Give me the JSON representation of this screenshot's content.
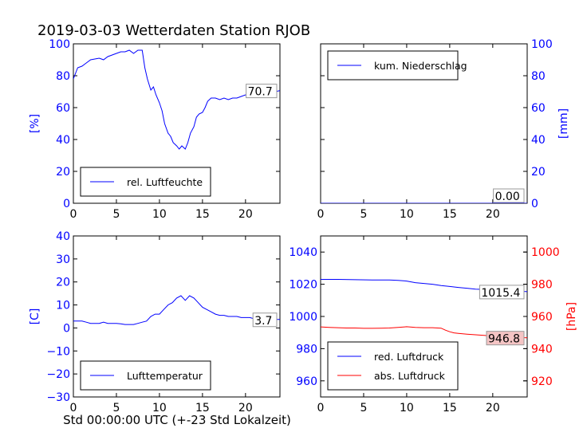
{
  "title": "2019-03-03 Wetterdaten Station RJOB",
  "footer_label": "Std 00:00:00 UTC (+-23 Std Lokalzeit)",
  "colors": {
    "blue": "#0000ff",
    "red": "#ff0000",
    "black": "#000000"
  },
  "chart_data": [
    {
      "type": "line",
      "ylabel": "[%]",
      "xlim": [
        0,
        24
      ],
      "ylim": [
        0,
        100
      ],
      "xticks": [
        "0",
        "5",
        "10",
        "15",
        "20"
      ],
      "yticks": [
        "0",
        "20",
        "40",
        "60",
        "80",
        "100"
      ],
      "legend": {
        "label": "rel. Luftfeuchte",
        "position": "lower-left"
      },
      "last_value_label": "70.7",
      "series": [
        {
          "name": "rel. Luftfeuchte",
          "color": "#0000ff",
          "x": [
            0,
            0.5,
            1,
            1.5,
            2,
            3,
            3.5,
            4,
            4.5,
            5,
            5.5,
            6,
            6.5,
            7,
            7.5,
            8,
            8.3,
            8.6,
            9,
            9.3,
            9.6,
            10,
            10.3,
            10.6,
            11,
            11.3,
            11.6,
            12,
            12.3,
            12.6,
            13,
            13.3,
            13.6,
            14,
            14.3,
            14.6,
            15,
            15.3,
            15.6,
            16,
            16.5,
            17,
            17.5,
            18,
            18.5,
            19,
            19.5,
            20,
            20.5,
            21,
            21.5,
            22,
            22.5,
            23,
            23.5,
            24
          ],
          "y": [
            78,
            85,
            86,
            88,
            90,
            91,
            90,
            92,
            93,
            94,
            95,
            95,
            96,
            94,
            96,
            96,
            85,
            78,
            71,
            73,
            68,
            63,
            58,
            50,
            44,
            42,
            38,
            36,
            34,
            36,
            34,
            38,
            44,
            48,
            54,
            56,
            57,
            60,
            64,
            66,
            66,
            65,
            66,
            65,
            66,
            66,
            67,
            68,
            67,
            69,
            70,
            71,
            70,
            71,
            70,
            70.7
          ]
        }
      ]
    },
    {
      "type": "line",
      "ylabel": "[mm]",
      "xlim": [
        0,
        24
      ],
      "ylim": [
        0,
        100
      ],
      "xticks": [
        "0",
        "5",
        "10",
        "15",
        "20"
      ],
      "yticks": [
        "0",
        "20",
        "40",
        "60",
        "80",
        "100"
      ],
      "legend": {
        "label": "kum. Niederschlag",
        "position": "upper-left"
      },
      "last_value_label": "0.00",
      "series": [
        {
          "name": "kum. Niederschlag",
          "color": "#0000ff",
          "x": [
            0,
            24
          ],
          "y": [
            0,
            0
          ]
        }
      ]
    },
    {
      "type": "line",
      "ylabel": "[C]",
      "xlabel": "Std 00:00:00 UTC (+-23 Std Lokalzeit)",
      "xlim": [
        0,
        24
      ],
      "ylim": [
        -30,
        40
      ],
      "xticks": [
        "0",
        "5",
        "10",
        "15",
        "20"
      ],
      "yticks": [
        "−30",
        "−20",
        "−10",
        "0",
        "10",
        "20",
        "30",
        "40"
      ],
      "legend": {
        "label": "Lufttemperatur",
        "position": "lower-left"
      },
      "last_value_label": "3.7",
      "series": [
        {
          "name": "Lufttemperatur",
          "color": "#0000ff",
          "x": [
            0,
            0.5,
            1,
            1.5,
            2,
            2.5,
            3,
            3.5,
            4,
            4.5,
            5,
            5.5,
            6,
            6.5,
            7,
            7.5,
            8,
            8.5,
            9,
            9.5,
            10,
            10.5,
            11,
            11.5,
            12,
            12.5,
            13,
            13.5,
            14,
            14.5,
            15,
            15.5,
            16,
            16.5,
            17,
            17.5,
            18,
            18.5,
            19,
            19.5,
            20,
            20.5,
            21,
            21.5,
            22,
            22.5,
            23,
            23.5,
            24
          ],
          "y": [
            3,
            3,
            3,
            2.5,
            2,
            2,
            2,
            2.5,
            2,
            2,
            2,
            1.8,
            1.5,
            1.5,
            1.5,
            2,
            2.5,
            3,
            5,
            6,
            6,
            8,
            10,
            11,
            13,
            14,
            12,
            14,
            13,
            11,
            9,
            8,
            7,
            6,
            5.5,
            5.5,
            5,
            5,
            5,
            4.5,
            4.5,
            4.5,
            4,
            4,
            4,
            3.5,
            3.5,
            3.7,
            3.7
          ]
        }
      ]
    },
    {
      "type": "line",
      "xlim": [
        0,
        24
      ],
      "ylim": [
        950,
        1050
      ],
      "ylim_right": [
        910,
        1010
      ],
      "ylabel_right": "[hPa]",
      "xticks": [
        "0",
        "5",
        "10",
        "15",
        "20"
      ],
      "yticks": [
        "960",
        "980",
        "1000",
        "1020",
        "1040"
      ],
      "yticks_right": [
        "920",
        "940",
        "960",
        "980",
        "1000"
      ],
      "legend": {
        "labels": [
          "red. Luftdruck",
          "abs. Luftdruck"
        ],
        "position": "lower-left"
      },
      "last_value_labels": [
        "1015.4",
        "946.8"
      ],
      "series": [
        {
          "name": "red. Luftdruck",
          "color": "#0000ff",
          "axis": "left",
          "x": [
            0,
            2,
            4,
            6,
            8,
            9,
            10,
            11,
            12,
            13,
            14,
            15,
            16,
            17,
            18,
            19,
            20,
            21,
            22,
            23,
            24
          ],
          "y": [
            1023,
            1023,
            1022.8,
            1022.6,
            1022.6,
            1022.4,
            1022,
            1021,
            1020.5,
            1020,
            1019.2,
            1018.6,
            1018,
            1017.5,
            1017,
            1016.8,
            1016.5,
            1016.2,
            1016,
            1015.7,
            1015.4
          ]
        },
        {
          "name": "abs. Luftdruck",
          "color": "#ff0000",
          "axis": "right",
          "x": [
            0,
            1,
            2,
            3,
            4,
            5,
            6,
            7,
            8,
            9,
            10,
            11,
            12,
            13,
            14,
            14.5,
            15,
            15.5,
            16,
            17,
            18,
            19,
            20,
            21,
            22,
            23,
            24
          ],
          "y": [
            953.5,
            953.2,
            953,
            952.8,
            952.8,
            952.6,
            952.6,
            952.7,
            952.8,
            953.2,
            953.6,
            953.2,
            953,
            953,
            952.7,
            951.5,
            950.5,
            949.8,
            949.5,
            949,
            948.6,
            948.2,
            947.8,
            947.4,
            947.1,
            946.9,
            946.8
          ]
        }
      ]
    }
  ]
}
